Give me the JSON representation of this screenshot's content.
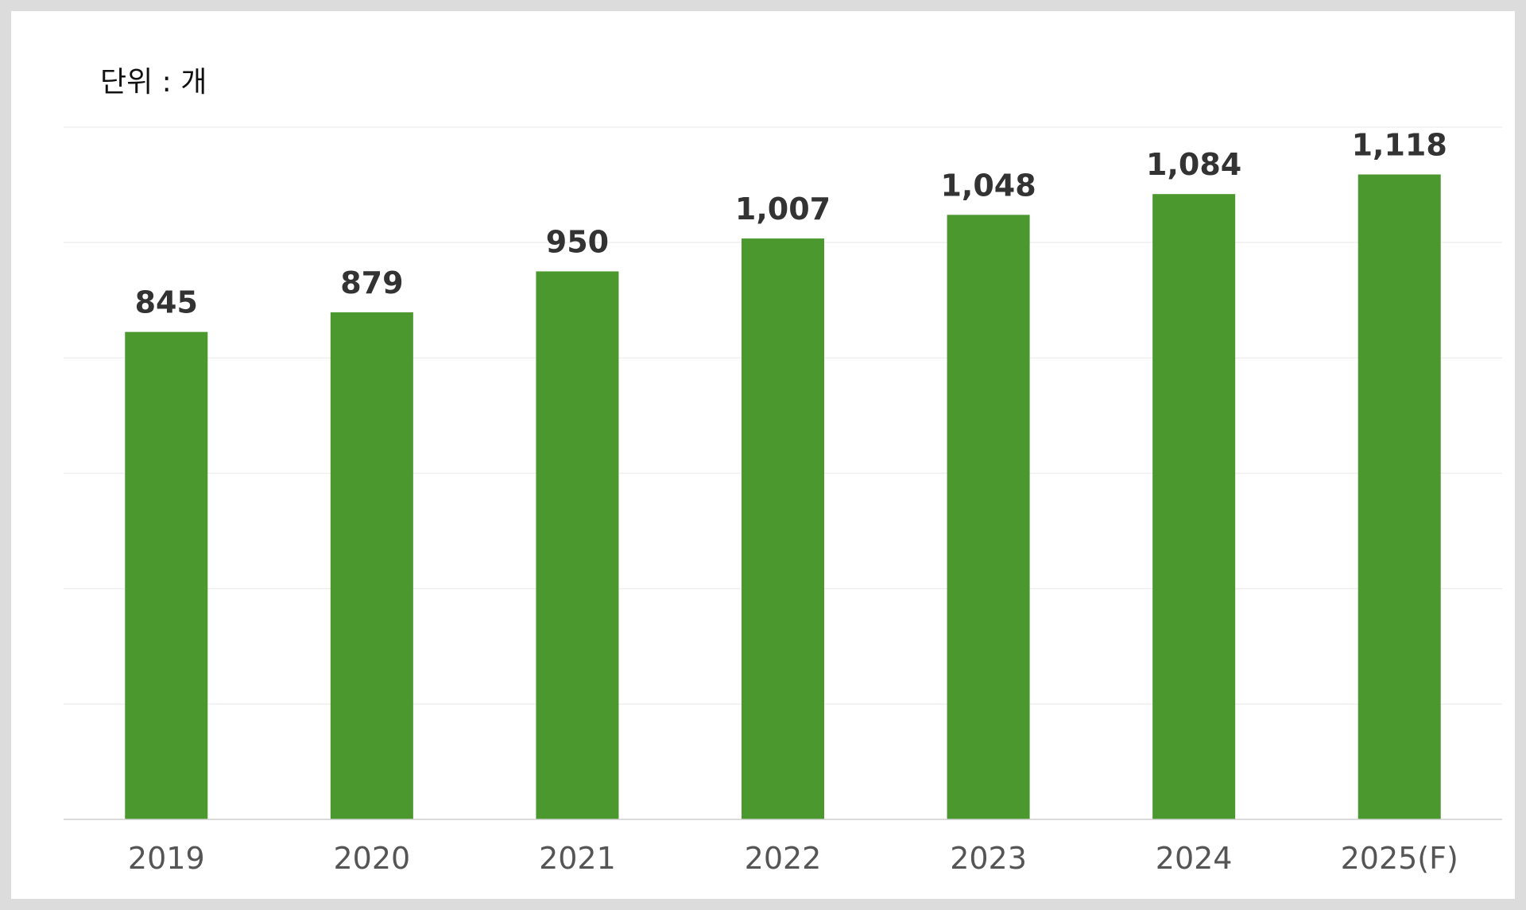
{
  "unit_label": "단위 : 개",
  "chart_data": {
    "type": "bar",
    "categories": [
      "2019",
      "2020",
      "2021",
      "2022",
      "2023",
      "2024",
      "2025(F)"
    ],
    "values": [
      845,
      879,
      950,
      1007,
      1048,
      1084,
      1118
    ],
    "value_labels": [
      "845",
      "879",
      "950",
      "1,007",
      "1,048",
      "1,084",
      "1,118"
    ],
    "title": "",
    "xlabel": "",
    "ylabel": "",
    "ylim": [
      0,
      1200
    ],
    "grid": true,
    "grid_step": 200,
    "legend": "none",
    "bar_color": "#4a982e"
  }
}
